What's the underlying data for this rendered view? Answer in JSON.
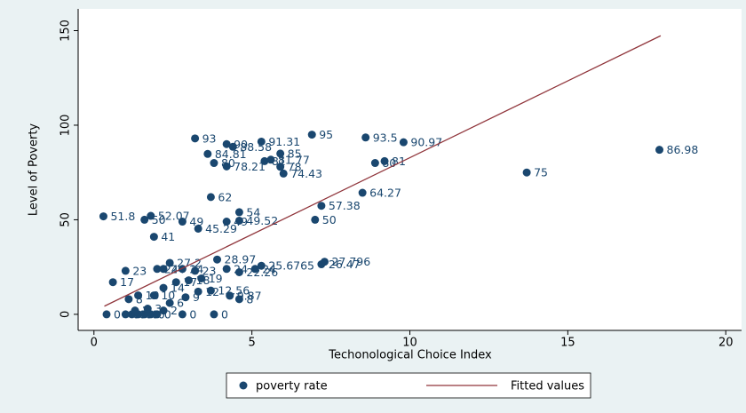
{
  "chart_data": {
    "type": "scatter",
    "xlabel": "Techonological Choice Index",
    "ylabel": "Level of Poverty",
    "xlim": [
      -0.5,
      20.5
    ],
    "ylim": [
      -8.5,
      161.5
    ],
    "xticks": [
      0,
      5,
      10,
      15,
      20
    ],
    "yticks": [
      0,
      50,
      100,
      150
    ],
    "series": [
      {
        "name": "poverty rate",
        "color": "#1a476f",
        "x": [
          17.9,
          13.7,
          9.8,
          8.6,
          9.2,
          8.9,
          8.5,
          7.2,
          7.0,
          6.9,
          5.3,
          3.2,
          4.2,
          4.4,
          3.6,
          5.9,
          5.6,
          5.4,
          3.8,
          4.2,
          5.9,
          6.0,
          3.7,
          4.6,
          0.3,
          1.8,
          1.6,
          2.8,
          4.6,
          4.2,
          3.3,
          1.9,
          7.3,
          7.2,
          3.9,
          5.3,
          4.6,
          2.4,
          1.0,
          0.6,
          4.3,
          4.6,
          3.7,
          2.8,
          3.8,
          0.4,
          1.0,
          1.2,
          1.4,
          1.6,
          1.8,
          2.0,
          1.3,
          1.7,
          2.2,
          1.1,
          1.4,
          1.9,
          2.2,
          2.4,
          2.9,
          3.3,
          2.6,
          3.0,
          3.4,
          2.0,
          2.2,
          2.8,
          3.2,
          4.2,
          5.1
        ],
        "values": [
          86.98,
          75,
          90.97,
          93.5,
          81,
          80,
          64.27,
          57.38,
          50,
          95,
          91.31,
          93,
          90,
          88.58,
          84.81,
          85,
          81.77,
          81,
          80,
          78.21,
          78,
          74.43,
          62,
          54,
          51.8,
          52.07,
          50,
          49,
          49.52,
          49,
          45.29,
          41,
          27.796,
          26.47,
          28.97,
          25.6765,
          22.26,
          27.2,
          23,
          17,
          9.87,
          8,
          12.56,
          0,
          0,
          0,
          0,
          0,
          0,
          0,
          0,
          0,
          2,
          3,
          2,
          8,
          10,
          10,
          14,
          6,
          9,
          12,
          17,
          18,
          19,
          24,
          24,
          24,
          23,
          24,
          24
        ]
      },
      {
        "name": "Fitted values",
        "color": "#90353b",
        "type": "line",
        "x": [
          0.33,
          17.94
        ],
        "values": [
          4.3,
          147.3
        ]
      }
    ]
  }
}
